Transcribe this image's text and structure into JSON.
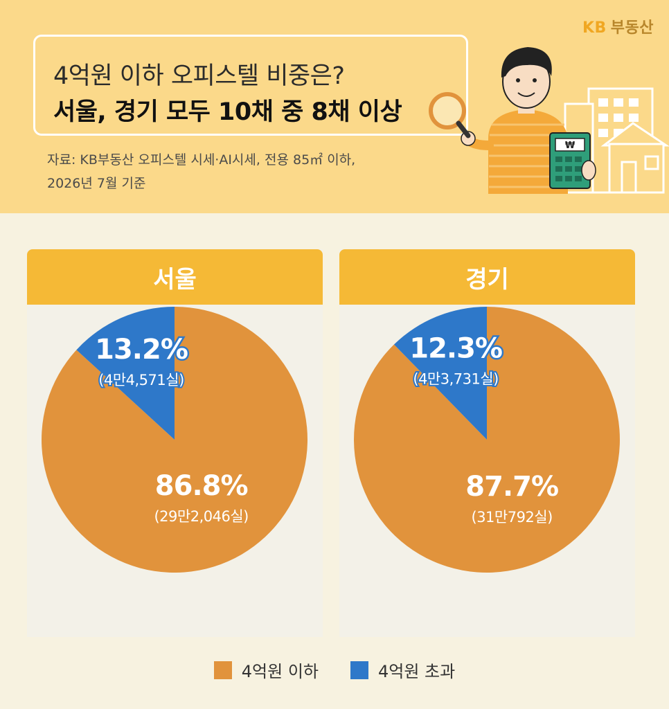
{
  "brand": {
    "kb": "KB",
    "rest": "부동산"
  },
  "title": {
    "line1": "4억원 이하 오피스텔 비중은?",
    "line2": "서울, 경기 모두 10채 중 8채 이상"
  },
  "source": {
    "line1": "자료: KB부동산 오피스텔 시세·AI시세, 전용 85㎡ 이하,",
    "line2": "2026년 7월 기준"
  },
  "colors": {
    "below": "#e1933c",
    "above": "#2e78c9",
    "header": "#f5b936"
  },
  "icons": [
    "person-icon",
    "magnifier-icon",
    "calculator-icon",
    "building-icon",
    "house-icon"
  ],
  "illustration": {
    "calculator_symbol": "₩"
  },
  "legend": [
    {
      "label": "4억원 이하",
      "color": "#e1933c"
    },
    {
      "label": "4억원 초과",
      "color": "#2e78c9"
    }
  ],
  "chart_data": [
    {
      "type": "pie",
      "title": "서울",
      "categories": [
        "4억원 이하",
        "4억원 초과"
      ],
      "values": [
        86.8,
        13.2
      ],
      "labels": [
        {
          "pct": "86.8%",
          "count": "(29만2,046실)"
        },
        {
          "pct": "13.2%",
          "count": "(4만4,571실)"
        }
      ]
    },
    {
      "type": "pie",
      "title": "경기",
      "categories": [
        "4억원 이하",
        "4억원 초과"
      ],
      "values": [
        87.7,
        12.3
      ],
      "labels": [
        {
          "pct": "87.7%",
          "count": "(31만792실)"
        },
        {
          "pct": "12.3%",
          "count": "(4만3,731실)"
        }
      ]
    }
  ]
}
